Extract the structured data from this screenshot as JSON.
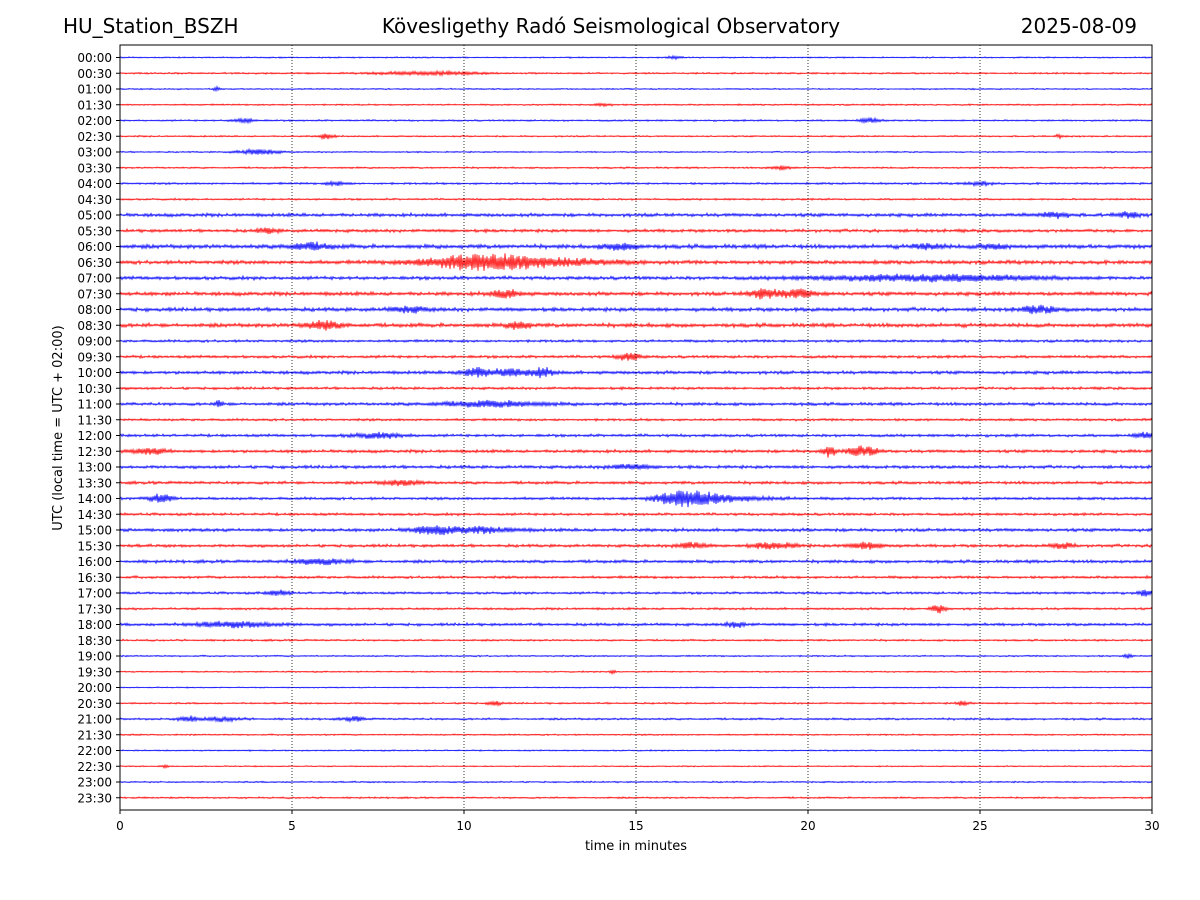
{
  "header": {
    "station": "HU_Station_BSZH",
    "title": "Kövesligethy Radó Seismological Observatory",
    "date": "2025-08-09"
  },
  "chart_data": {
    "type": "line",
    "title": "Kövesligethy Radó Seismological Observatory",
    "xlabel": "time in minutes",
    "ylabel": "UTC (local time = UTC + 02:00)",
    "xlim": [
      0,
      30
    ],
    "x_ticks": [
      0,
      5,
      10,
      15,
      20,
      25,
      30
    ],
    "grid": "vertical dotted lines at 5, 10, 15, 20, 25 minutes",
    "colors": [
      "#0000ff",
      "#ff0000"
    ],
    "rows": [
      {
        "label": "00:00",
        "color": "#0000ff",
        "noise": 0.8,
        "events": [
          [
            16.1,
            1.4,
            0.2
          ]
        ]
      },
      {
        "label": "00:30",
        "color": "#ff0000",
        "noise": 1.0,
        "events": [
          [
            9.0,
            1.5,
            1.5
          ]
        ]
      },
      {
        "label": "01:00",
        "color": "#0000ff",
        "noise": 0.8,
        "events": [
          [
            2.8,
            2.0,
            0.1
          ]
        ]
      },
      {
        "label": "01:30",
        "color": "#ff0000",
        "noise": 0.9,
        "events": [
          [
            14.0,
            1.2,
            0.3
          ]
        ]
      },
      {
        "label": "02:00",
        "color": "#0000ff",
        "noise": 1.0,
        "events": [
          [
            3.6,
            2.0,
            0.3
          ],
          [
            21.8,
            2.2,
            0.3
          ]
        ]
      },
      {
        "label": "02:30",
        "color": "#ff0000",
        "noise": 0.9,
        "events": [
          [
            6.0,
            2.8,
            0.2
          ],
          [
            27.3,
            1.8,
            0.1
          ]
        ]
      },
      {
        "label": "03:00",
        "color": "#0000ff",
        "noise": 0.8,
        "events": [
          [
            4.0,
            2.5,
            0.6
          ]
        ]
      },
      {
        "label": "03:30",
        "color": "#ff0000",
        "noise": 1.0,
        "events": [
          [
            19.2,
            1.8,
            0.3
          ]
        ]
      },
      {
        "label": "04:00",
        "color": "#0000ff",
        "noise": 1.2,
        "events": [
          [
            6.3,
            1.8,
            0.3
          ],
          [
            25.0,
            1.6,
            0.4
          ]
        ]
      },
      {
        "label": "04:30",
        "color": "#ff0000",
        "noise": 1.1,
        "events": []
      },
      {
        "label": "05:00",
        "color": "#0000ff",
        "noise": 2.0,
        "events": [
          [
            27.2,
            2.5,
            0.4
          ],
          [
            29.3,
            2.5,
            0.3
          ]
        ]
      },
      {
        "label": "05:30",
        "color": "#ff0000",
        "noise": 1.8,
        "events": [
          [
            4.3,
            2.2,
            0.3
          ]
        ]
      },
      {
        "label": "06:00",
        "color": "#0000ff",
        "noise": 2.4,
        "events": [
          [
            5.5,
            3.2,
            0.6
          ],
          [
            14.6,
            2.8,
            0.5
          ],
          [
            23.5,
            2.5,
            0.4
          ],
          [
            25.4,
            2.5,
            0.4
          ]
        ]
      },
      {
        "label": "06:30",
        "color": "#ff0000",
        "noise": 2.2,
        "events": [
          [
            10.3,
            7.0,
            1.5
          ],
          [
            12.5,
            3.5,
            1.8
          ]
        ]
      },
      {
        "label": "07:00",
        "color": "#0000ff",
        "noise": 2.0,
        "events": [
          [
            23.5,
            3.0,
            3.0
          ]
        ]
      },
      {
        "label": "07:30",
        "color": "#ff0000",
        "noise": 2.2,
        "events": [
          [
            11.2,
            3.5,
            0.4
          ],
          [
            18.7,
            4.5,
            0.4
          ],
          [
            19.7,
            4.0,
            0.5
          ]
        ]
      },
      {
        "label": "08:00",
        "color": "#0000ff",
        "noise": 2.2,
        "events": [
          [
            8.4,
            2.5,
            0.5
          ],
          [
            26.7,
            3.0,
            0.5
          ]
        ]
      },
      {
        "label": "08:30",
        "color": "#ff0000",
        "noise": 2.3,
        "events": [
          [
            5.9,
            4.0,
            0.5
          ],
          [
            11.6,
            4.0,
            0.3
          ]
        ]
      },
      {
        "label": "09:00",
        "color": "#0000ff",
        "noise": 1.5,
        "events": []
      },
      {
        "label": "09:30",
        "color": "#ff0000",
        "noise": 1.6,
        "events": [
          [
            14.8,
            4.0,
            0.3
          ]
        ]
      },
      {
        "label": "10:00",
        "color": "#0000ff",
        "noise": 1.9,
        "events": [
          [
            10.3,
            3.5,
            0.3
          ],
          [
            11.2,
            3.0,
            1.0
          ],
          [
            12.3,
            3.2,
            0.3
          ]
        ]
      },
      {
        "label": "10:30",
        "color": "#ff0000",
        "noise": 1.5,
        "events": []
      },
      {
        "label": "11:00",
        "color": "#0000ff",
        "noise": 1.8,
        "events": [
          [
            2.9,
            3.5,
            0.1
          ],
          [
            10.8,
            2.5,
            1.5
          ]
        ]
      },
      {
        "label": "11:30",
        "color": "#ff0000",
        "noise": 1.4,
        "events": []
      },
      {
        "label": "12:00",
        "color": "#0000ff",
        "noise": 1.6,
        "events": [
          [
            7.5,
            2.2,
            0.8
          ],
          [
            29.8,
            2.5,
            0.3
          ]
        ]
      },
      {
        "label": "12:30",
        "color": "#ff0000",
        "noise": 1.8,
        "events": [
          [
            0.9,
            2.5,
            0.5
          ],
          [
            20.6,
            5.0,
            0.2
          ],
          [
            21.6,
            5.0,
            0.4
          ]
        ]
      },
      {
        "label": "13:00",
        "color": "#0000ff",
        "noise": 1.8,
        "events": [
          [
            14.8,
            2.0,
            0.6
          ]
        ]
      },
      {
        "label": "13:30",
        "color": "#ff0000",
        "noise": 1.7,
        "events": [
          [
            8.2,
            2.2,
            0.6
          ]
        ]
      },
      {
        "label": "14:00",
        "color": "#0000ff",
        "noise": 1.6,
        "events": [
          [
            1.2,
            5.0,
            0.3
          ],
          [
            16.4,
            7.0,
            0.8
          ],
          [
            17.5,
            2.5,
            1.5
          ]
        ]
      },
      {
        "label": "14:30",
        "color": "#ff0000",
        "noise": 1.5,
        "events": []
      },
      {
        "label": "15:00",
        "color": "#0000ff",
        "noise": 1.9,
        "events": [
          [
            9.1,
            3.5,
            0.6
          ],
          [
            10.5,
            2.5,
            1.0
          ]
        ]
      },
      {
        "label": "15:30",
        "color": "#ff0000",
        "noise": 1.7,
        "events": [
          [
            16.6,
            3.0,
            0.4
          ],
          [
            19.0,
            3.0,
            0.6
          ],
          [
            21.7,
            3.2,
            0.5
          ],
          [
            27.4,
            2.8,
            0.3
          ]
        ]
      },
      {
        "label": "16:00",
        "color": "#0000ff",
        "noise": 1.8,
        "events": [
          [
            5.8,
            2.5,
            0.8
          ]
        ]
      },
      {
        "label": "16:30",
        "color": "#ff0000",
        "noise": 1.5,
        "events": []
      },
      {
        "label": "17:00",
        "color": "#0000ff",
        "noise": 1.4,
        "events": [
          [
            4.6,
            2.5,
            0.3
          ],
          [
            29.8,
            2.8,
            0.2
          ]
        ]
      },
      {
        "label": "17:30",
        "color": "#ff0000",
        "noise": 1.3,
        "events": [
          [
            23.8,
            4.0,
            0.2
          ]
        ]
      },
      {
        "label": "18:00",
        "color": "#0000ff",
        "noise": 1.6,
        "events": [
          [
            3.4,
            2.5,
            1.2
          ],
          [
            17.9,
            2.5,
            0.3
          ]
        ]
      },
      {
        "label": "18:30",
        "color": "#ff0000",
        "noise": 1.1,
        "events": []
      },
      {
        "label": "19:00",
        "color": "#0000ff",
        "noise": 0.9,
        "events": [
          [
            29.3,
            2.5,
            0.1
          ]
        ]
      },
      {
        "label": "19:30",
        "color": "#ff0000",
        "noise": 0.8,
        "events": [
          [
            14.3,
            2.0,
            0.1
          ]
        ]
      },
      {
        "label": "20:00",
        "color": "#0000ff",
        "noise": 0.7,
        "events": []
      },
      {
        "label": "20:30",
        "color": "#ff0000",
        "noise": 1.0,
        "events": [
          [
            10.9,
            2.0,
            0.2
          ],
          [
            24.5,
            2.0,
            0.2
          ]
        ]
      },
      {
        "label": "21:00",
        "color": "#0000ff",
        "noise": 1.2,
        "events": [
          [
            2.0,
            2.5,
            0.3
          ],
          [
            3.0,
            2.0,
            0.5
          ],
          [
            6.8,
            2.0,
            0.3
          ]
        ]
      },
      {
        "label": "21:30",
        "color": "#ff0000",
        "noise": 0.9,
        "events": []
      },
      {
        "label": "22:00",
        "color": "#0000ff",
        "noise": 0.8,
        "events": []
      },
      {
        "label": "22:30",
        "color": "#ff0000",
        "noise": 0.7,
        "events": [
          [
            1.3,
            1.5,
            0.1
          ]
        ]
      },
      {
        "label": "23:00",
        "color": "#0000ff",
        "noise": 0.9,
        "events": []
      },
      {
        "label": "23:30",
        "color": "#ff0000",
        "noise": 1.0,
        "events": []
      }
    ]
  }
}
